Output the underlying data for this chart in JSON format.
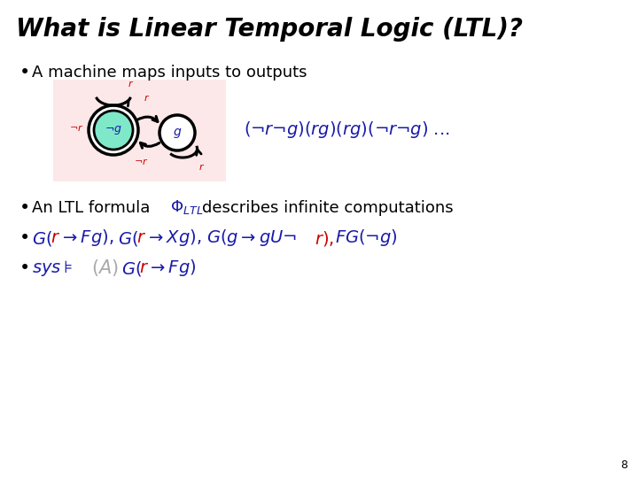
{
  "title": "What is Linear Temporal Logic (LTL)?",
  "background_color": "#ffffff",
  "slide_number": "8",
  "bullet1": "A machine maps inputs to outputs",
  "pink_bg": "#fce8e8",
  "teal_fill": "#7ee8c8",
  "red_color": "#cc0000",
  "blue_color": "#1a1aaa",
  "gray_color": "#aaaaaa",
  "black_color": "#000000",
  "title_fontsize": 20,
  "body_fontsize": 13,
  "math_fontsize": 13,
  "seq_fontsize": 14,
  "small_label_fontsize": 9,
  "slide_num_fontsize": 9
}
